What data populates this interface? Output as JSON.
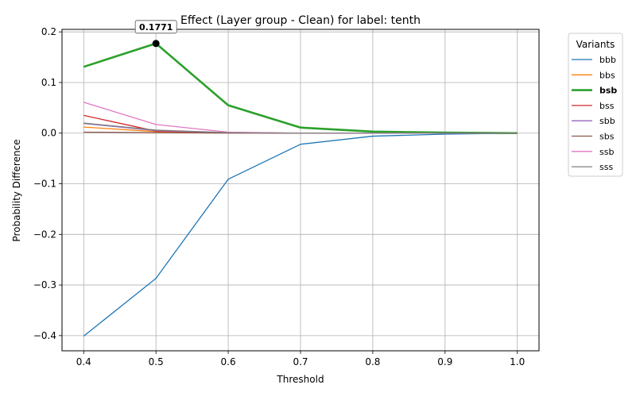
{
  "chart_data": {
    "type": "line",
    "title": "Effect (Layer group - Clean) for label: tenth",
    "xlabel": "Threshold",
    "ylabel": "Probability Difference",
    "x": [
      0.4,
      0.5,
      0.6,
      0.7,
      0.8,
      0.9,
      1.0
    ],
    "xlim": [
      0.37,
      1.03
    ],
    "ylim": [
      -0.43,
      0.205
    ],
    "xticks": [
      "0.4",
      "0.5",
      "0.6",
      "0.7",
      "0.8",
      "0.9",
      "1.0"
    ],
    "xtick_values": [
      0.4,
      0.5,
      0.6,
      0.7,
      0.8,
      0.9,
      1.0
    ],
    "yticks": [
      "−0.4",
      "−0.3",
      "−0.2",
      "−0.1",
      "0.0",
      "0.1",
      "0.2"
    ],
    "ytick_values": [
      -0.4,
      -0.3,
      -0.2,
      -0.1,
      0.0,
      0.1,
      0.2
    ],
    "grid": true,
    "legend_title": "Variants",
    "legend_placement": "outside-right",
    "highlight_series": "bsb",
    "annotation": {
      "series": "bsb",
      "x": 0.5,
      "y": 0.1771,
      "label": "0.1771"
    },
    "series": [
      {
        "name": "bbb",
        "color": "#1f77b4",
        "values": [
          -0.401,
          -0.287,
          -0.091,
          -0.022,
          -0.006,
          -0.002,
          0.0
        ]
      },
      {
        "name": "bbs",
        "color": "#ff7f0e",
        "values": [
          0.012,
          0.003,
          0.001,
          0.0,
          0.0,
          0.0,
          0.0
        ]
      },
      {
        "name": "bsb",
        "color": "#2ca02c",
        "values": [
          0.131,
          0.1771,
          0.055,
          0.011,
          0.003,
          0.001,
          0.0
        ]
      },
      {
        "name": "bss",
        "color": "#d62728",
        "values": [
          0.035,
          0.004,
          0.001,
          0.0,
          0.0,
          0.0,
          0.0
        ]
      },
      {
        "name": "sbb",
        "color": "#9467bd",
        "values": [
          0.019,
          0.005,
          0.001,
          0.0,
          0.0,
          0.0,
          0.0
        ]
      },
      {
        "name": "sbs",
        "color": "#8c564b",
        "values": [
          0.002,
          0.001,
          0.0,
          0.0,
          0.0,
          0.0,
          0.0
        ]
      },
      {
        "name": "ssb",
        "color": "#e377c2",
        "values": [
          0.061,
          0.017,
          0.002,
          0.0,
          0.0,
          0.0,
          0.0
        ]
      },
      {
        "name": "sss",
        "color": "#7f7f7f",
        "values": [
          0.02,
          0.006,
          0.001,
          0.0,
          0.0,
          0.0,
          0.0
        ]
      }
    ]
  }
}
